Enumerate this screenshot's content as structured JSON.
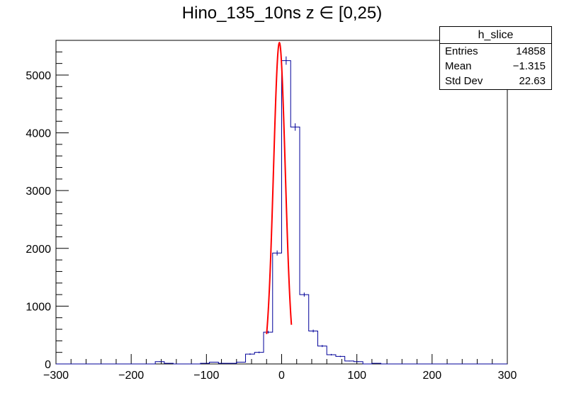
{
  "chart_data": {
    "type": "histogram",
    "title": "Hino_135_10ns z  ∈ [0,25)",
    "xlim": [
      -300,
      300
    ],
    "ylim": [
      0,
      5600
    ],
    "xticks": [
      -300,
      -200,
      -100,
      0,
      100,
      200,
      300
    ],
    "yticks": [
      0,
      1000,
      2000,
      3000,
      4000,
      5000
    ],
    "xtick_labels": [
      "−300",
      "−200",
      "−100",
      "0",
      "100",
      "200",
      "300"
    ],
    "ytick_labels": [
      "0",
      "1000",
      "2000",
      "3000",
      "4000",
      "5000"
    ],
    "bin_width": 12,
    "histogram": {
      "name": "h_slice",
      "color": "#000099",
      "bin_edges": [
        -300,
        -288,
        -276,
        -264,
        -252,
        -240,
        -228,
        -216,
        -204,
        -192,
        -180,
        -168,
        -156,
        -144,
        -132,
        -120,
        -108,
        -96,
        -84,
        -72,
        -60,
        -48,
        -36,
        -24,
        -12,
        0,
        12,
        24,
        36,
        48,
        60,
        72,
        84,
        96,
        108,
        120,
        132,
        144,
        156,
        168,
        180,
        192,
        204,
        216,
        228,
        240,
        252,
        264,
        276,
        288,
        300
      ],
      "counts": [
        0,
        0,
        0,
        0,
        0,
        0,
        0,
        0,
        0,
        0,
        0,
        40,
        10,
        0,
        0,
        0,
        10,
        30,
        10,
        10,
        30,
        170,
        200,
        550,
        1920,
        5250,
        4100,
        1200,
        570,
        310,
        160,
        130,
        50,
        40,
        0,
        10,
        0,
        0,
        0,
        0,
        0,
        0,
        0,
        0,
        0,
        0,
        0,
        0,
        0,
        0
      ],
      "errors": [
        0,
        0,
        0,
        0,
        0,
        0,
        0,
        0,
        0,
        0,
        0,
        6,
        3,
        0,
        0,
        0,
        3,
        5,
        3,
        3,
        5,
        13,
        14,
        23,
        44,
        72,
        64,
        35,
        24,
        18,
        13,
        11,
        7,
        6,
        0,
        3,
        0,
        0,
        0,
        0,
        0,
        0,
        0,
        0,
        0,
        0,
        0,
        0,
        0,
        0
      ]
    },
    "fit": {
      "type": "gaussian",
      "color": "#ff0000",
      "amplitude": 5560,
      "mean": -3,
      "sigma": 7.8,
      "x_range": [
        -20,
        13
      ]
    },
    "stats_box": {
      "title": "h_slice",
      "rows": [
        {
          "label": "Entries",
          "value": "14858"
        },
        {
          "label": "Mean",
          "value": "−1.315"
        },
        {
          "label": "Std Dev",
          "value": "22.63"
        }
      ]
    }
  }
}
